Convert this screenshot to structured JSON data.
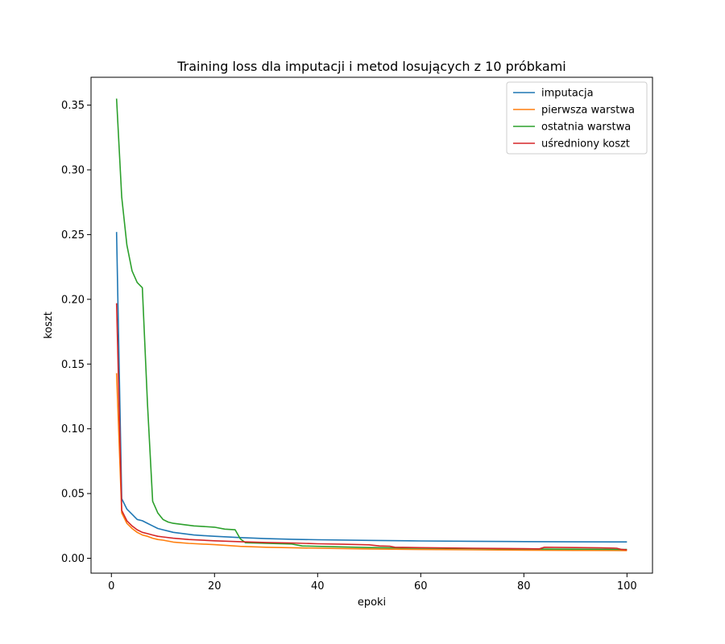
{
  "chart_data": {
    "type": "line",
    "title": "Training loss dla imputacji i metod losujących z 10 próbkami",
    "xlabel": "epoki",
    "ylabel": "koszt",
    "xlim": [
      -3.95,
      104.95
    ],
    "ylim": [
      -0.0115,
      0.3715
    ],
    "xticks": [
      0,
      20,
      40,
      60,
      80,
      100
    ],
    "xtick_labels": [
      "0",
      "20",
      "40",
      "60",
      "80",
      "100"
    ],
    "yticks": [
      0.0,
      0.05,
      0.1,
      0.15,
      0.2,
      0.25,
      0.3,
      0.35
    ],
    "ytick_labels": [
      "0.00",
      "0.05",
      "0.10",
      "0.15",
      "0.20",
      "0.25",
      "0.30",
      "0.35"
    ],
    "grid": false,
    "legend_position": "top-right",
    "series": [
      {
        "name": "imputacja",
        "color": "#1f77b4",
        "points": [
          [
            1,
            0.252
          ],
          [
            2,
            0.046
          ],
          [
            3,
            0.038
          ],
          [
            4,
            0.034
          ],
          [
            5,
            0.03
          ],
          [
            6,
            0.029
          ],
          [
            7,
            0.027
          ],
          [
            8,
            0.025
          ],
          [
            9,
            0.023
          ],
          [
            10,
            0.022
          ],
          [
            11,
            0.021
          ],
          [
            12,
            0.02
          ],
          [
            14,
            0.019
          ],
          [
            16,
            0.018
          ],
          [
            18,
            0.0175
          ],
          [
            20,
            0.017
          ],
          [
            25,
            0.016
          ],
          [
            30,
            0.0152
          ],
          [
            35,
            0.0147
          ],
          [
            40,
            0.0143
          ],
          [
            50,
            0.0138
          ],
          [
            60,
            0.0134
          ],
          [
            70,
            0.0131
          ],
          [
            80,
            0.0129
          ],
          [
            90,
            0.0127
          ],
          [
            100,
            0.0126
          ]
        ]
      },
      {
        "name": "pierwsza warstwa",
        "color": "#ff7f0e",
        "points": [
          [
            1,
            0.143
          ],
          [
            2,
            0.035
          ],
          [
            3,
            0.027
          ],
          [
            4,
            0.023
          ],
          [
            5,
            0.02
          ],
          [
            6,
            0.018
          ],
          [
            7,
            0.017
          ],
          [
            8,
            0.0155
          ],
          [
            9,
            0.0145
          ],
          [
            10,
            0.014
          ],
          [
            12,
            0.0125
          ],
          [
            15,
            0.0115
          ],
          [
            20,
            0.0105
          ],
          [
            25,
            0.0092
          ],
          [
            30,
            0.0085
          ],
          [
            40,
            0.0078
          ],
          [
            50,
            0.0072
          ],
          [
            60,
            0.0068
          ],
          [
            70,
            0.0065
          ],
          [
            80,
            0.0063
          ],
          [
            90,
            0.0061
          ],
          [
            100,
            0.006
          ]
        ]
      },
      {
        "name": "ostatnia warstwa",
        "color": "#2ca02c",
        "points": [
          [
            1,
            0.355
          ],
          [
            2,
            0.279
          ],
          [
            3,
            0.242
          ],
          [
            4,
            0.222
          ],
          [
            5,
            0.213
          ],
          [
            6,
            0.209
          ],
          [
            7,
            0.119
          ],
          [
            8,
            0.044
          ],
          [
            9,
            0.035
          ],
          [
            10,
            0.03
          ],
          [
            11,
            0.028
          ],
          [
            12,
            0.027
          ],
          [
            14,
            0.026
          ],
          [
            16,
            0.025
          ],
          [
            18,
            0.0245
          ],
          [
            20,
            0.024
          ],
          [
            22,
            0.0225
          ],
          [
            24,
            0.022
          ],
          [
            25,
            0.015
          ],
          [
            26,
            0.012
          ],
          [
            30,
            0.0115
          ],
          [
            35,
            0.011
          ],
          [
            37,
            0.0095
          ],
          [
            40,
            0.0092
          ],
          [
            45,
            0.0088
          ],
          [
            50,
            0.0083
          ],
          [
            55,
            0.008
          ],
          [
            60,
            0.0078
          ],
          [
            70,
            0.0075
          ],
          [
            80,
            0.0072
          ],
          [
            84,
            0.0071
          ],
          [
            90,
            0.007
          ],
          [
            100,
            0.0068
          ]
        ]
      },
      {
        "name": "uśredniony koszt",
        "color": "#d62728",
        "points": [
          [
            1,
            0.197
          ],
          [
            2,
            0.037
          ],
          [
            3,
            0.029
          ],
          [
            4,
            0.025
          ],
          [
            5,
            0.022
          ],
          [
            6,
            0.02
          ],
          [
            7,
            0.019
          ],
          [
            8,
            0.018
          ],
          [
            9,
            0.017
          ],
          [
            10,
            0.0165
          ],
          [
            12,
            0.0155
          ],
          [
            15,
            0.0145
          ],
          [
            20,
            0.0135
          ],
          [
            25,
            0.0128
          ],
          [
            30,
            0.0122
          ],
          [
            35,
            0.0118
          ],
          [
            40,
            0.0112
          ],
          [
            45,
            0.0108
          ],
          [
            50,
            0.0104
          ],
          [
            52,
            0.0095
          ],
          [
            54,
            0.0093
          ],
          [
            55,
            0.0085
          ],
          [
            60,
            0.0082
          ],
          [
            70,
            0.0078
          ],
          [
            80,
            0.0074
          ],
          [
            83,
            0.0073
          ],
          [
            84,
            0.0085
          ],
          [
            90,
            0.0083
          ],
          [
            95,
            0.008
          ],
          [
            98,
            0.0078
          ],
          [
            99,
            0.0068
          ],
          [
            100,
            0.0065
          ]
        ]
      }
    ]
  }
}
